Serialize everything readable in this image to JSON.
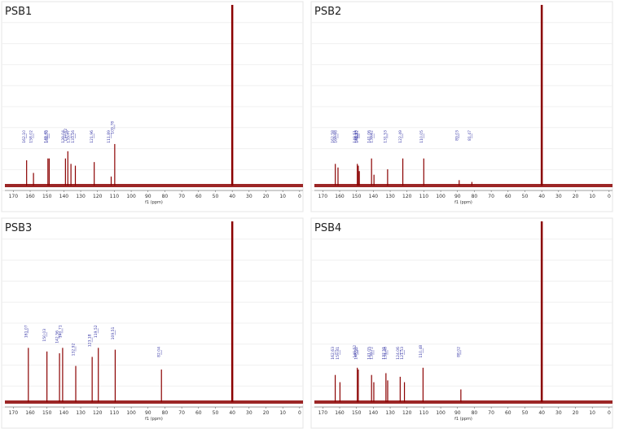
{
  "chart_data": [
    {
      "type": "stem",
      "title": "PSB1",
      "x_label": "f1 (ppm)",
      "color": "#8b0000",
      "label_color": "#3a3aa8",
      "xlim": [
        175,
        -2
      ],
      "xticks": [
        170,
        160,
        150,
        140,
        130,
        120,
        110,
        100,
        90,
        80,
        70,
        60,
        50,
        40,
        30,
        20,
        10,
        0
      ],
      "ylim": [
        0,
        100
      ],
      "x": [
        162.1,
        158.02,
        149.45,
        148.7,
        139.04,
        137.62,
        135.77,
        133.16,
        121.96,
        111.89,
        109.78,
        40
      ],
      "x_labels": [
        "162.10",
        "158.02",
        "149.45",
        "148.70",
        "139.04",
        "137.62",
        "135.77",
        "133.16",
        "121.96",
        "111.89",
        "109.78",
        null
      ],
      "values": [
        14,
        7,
        15,
        15,
        15,
        19,
        12,
        11,
        13,
        5,
        23,
        100
      ]
    },
    {
      "type": "stem",
      "title": "PSB2",
      "x_label": "f1 (ppm)",
      "color": "#8b0000",
      "label_color": "#3a3aa8",
      "xlim": [
        175,
        -2
      ],
      "xticks": [
        170,
        160,
        150,
        140,
        130,
        120,
        110,
        100,
        90,
        80,
        70,
        60,
        50,
        40,
        30,
        20,
        10,
        0
      ],
      "ylim": [
        0,
        100
      ],
      "x": [
        162.58,
        160.98,
        149.51,
        148.93,
        148.32,
        141.06,
        139.62,
        131.53,
        122.49,
        110.05,
        89.03,
        81.47,
        40
      ],
      "x_labels": [
        "162.58",
        "160.98",
        "149.51",
        "148.93",
        "148.32",
        "141.06",
        "139.62",
        "131.53",
        "122.49",
        "110.05",
        "89.03",
        "81.47",
        null
      ],
      "values": [
        12,
        10,
        12,
        11,
        8,
        15,
        6,
        9,
        15,
        15,
        3,
        2,
        100
      ]
    },
    {
      "type": "stem",
      "title": "PSB3",
      "x_label": "f1 (ppm)",
      "color": "#8b0000",
      "label_color": "#3a3aa8",
      "xlim": [
        175,
        -2
      ],
      "xticks": [
        170,
        160,
        150,
        140,
        130,
        120,
        110,
        100,
        90,
        80,
        70,
        60,
        50,
        40,
        30,
        20,
        10,
        0
      ],
      "ylim": [
        0,
        100
      ],
      "x": [
        161.07,
        150.03,
        142.56,
        140.71,
        132.92,
        123.18,
        119.52,
        109.51,
        82.04,
        40
      ],
      "x_labels": [
        "161.07",
        "150.03",
        "142.56",
        "140.71",
        "132.92",
        "123.18",
        "119.52",
        "109.51",
        "82.04",
        null
      ],
      "values": [
        30,
        28,
        27,
        30,
        20,
        25,
        30,
        29,
        18,
        100
      ]
    },
    {
      "type": "stem",
      "title": "PSB4",
      "x_label": "f1 (ppm)",
      "color": "#8b0000",
      "label_color": "#3a3aa8",
      "xlim": [
        175,
        -2
      ],
      "xticks": [
        170,
        160,
        150,
        140,
        130,
        120,
        110,
        100,
        90,
        80,
        70,
        60,
        50,
        40,
        30,
        20,
        10,
        0
      ],
      "ylim": [
        0,
        100
      ],
      "x": [
        162.63,
        159.81,
        149.52,
        148.91,
        141.05,
        139.72,
        132.51,
        131.48,
        124.06,
        121.53,
        110.48,
        88.02,
        40
      ],
      "x_labels": [
        "162.63",
        "159.81",
        "149.52",
        "148.91",
        "141.05",
        "139.72",
        "132.51",
        "131.48",
        "124.06",
        "121.53",
        "110.48",
        "88.02",
        null
      ],
      "values": [
        15,
        11,
        19,
        18,
        15,
        11,
        16,
        12,
        14,
        11,
        19,
        7,
        100
      ]
    }
  ]
}
